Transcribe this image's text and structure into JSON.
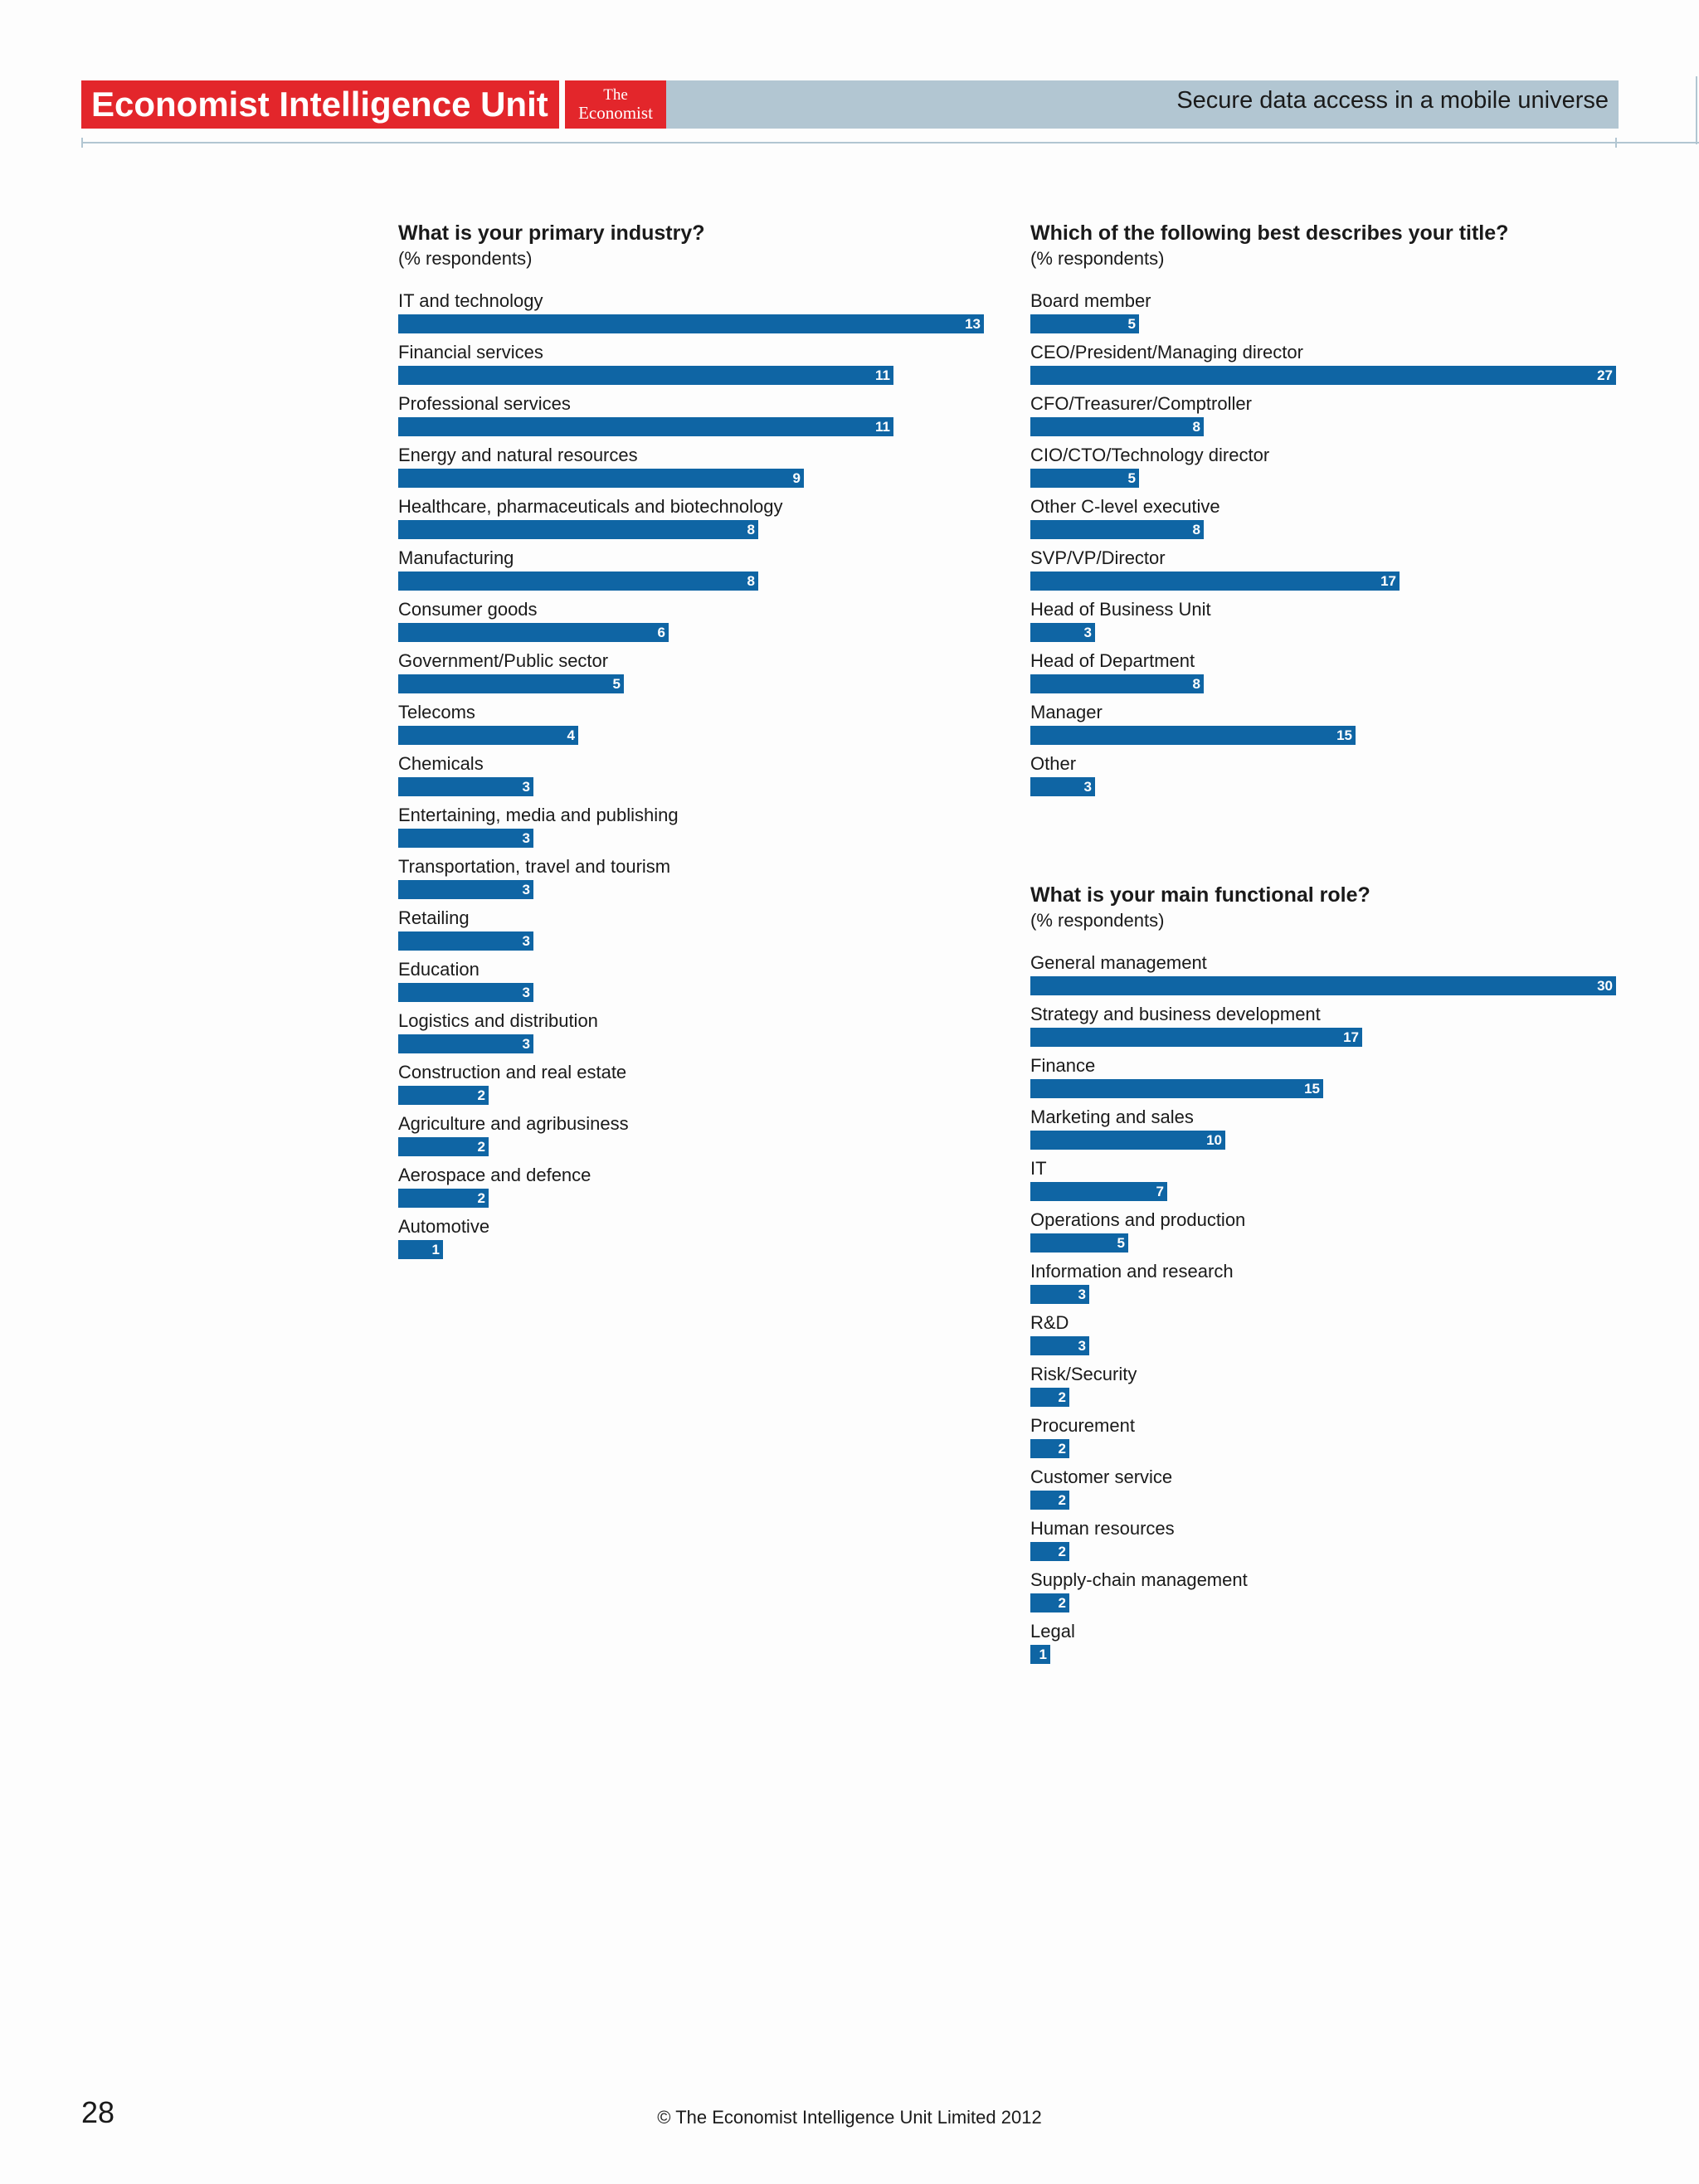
{
  "header": {
    "brand": "Economist Intelligence Unit",
    "logo_line1": "The",
    "logo_line2": "Economist",
    "report_title": "Secure data access in a mobile universe"
  },
  "colors": {
    "brand_red": "#e3262b",
    "header_blue": "#b2c6d2",
    "bar_blue": "#0f65a4"
  },
  "footer": {
    "page_number": "28",
    "copyright": "© The Economist Intelligence Unit Limited 2012"
  },
  "chart_data": [
    {
      "type": "bar",
      "orientation": "horizontal",
      "title": "What is your primary industry?",
      "subtitle": "(% respondents)",
      "xlim": [
        0,
        13
      ],
      "categories": [
        "IT and technology",
        "Financial services",
        "Professional services",
        "Energy and natural resources",
        "Healthcare, pharmaceuticals and biotechnology",
        "Manufacturing",
        "Consumer goods",
        "Government/Public sector",
        "Telecoms",
        "Chemicals",
        "Entertaining, media and publishing",
        "Transportation, travel and tourism",
        "Retailing",
        "Education",
        "Logistics and distribution",
        "Construction and real estate",
        "Agriculture and agribusiness",
        "Aerospace and defence",
        "Automotive"
      ],
      "values": [
        13,
        11,
        11,
        9,
        8,
        8,
        6,
        5,
        4,
        3,
        3,
        3,
        3,
        3,
        3,
        2,
        2,
        2,
        1
      ]
    },
    {
      "type": "bar",
      "orientation": "horizontal",
      "title": "Which of the following best describes your title?",
      "subtitle": "(% respondents)",
      "xlim": [
        0,
        27
      ],
      "categories": [
        "Board member",
        "CEO/President/Managing director",
        "CFO/Treasurer/Comptroller",
        "CIO/CTO/Technology director",
        "Other C-level executive",
        "SVP/VP/Director",
        "Head of Business Unit",
        "Head of Department",
        "Manager",
        "Other"
      ],
      "values": [
        5,
        27,
        8,
        5,
        8,
        17,
        3,
        8,
        15,
        3
      ]
    },
    {
      "type": "bar",
      "orientation": "horizontal",
      "title": "What is your main functional role?",
      "subtitle": "(% respondents)",
      "xlim": [
        0,
        30
      ],
      "categories": [
        "General management",
        "Strategy and business development",
        "Finance",
        "Marketing and sales",
        "IT",
        "Operations and production",
        "Information and research",
        "R&D",
        "Risk/Security",
        "Procurement",
        "Customer service",
        "Human resources",
        "Supply-chain management",
        "Legal"
      ],
      "values": [
        30,
        17,
        15,
        10,
        7,
        5,
        3,
        3,
        2,
        2,
        2,
        2,
        2,
        1
      ]
    }
  ]
}
